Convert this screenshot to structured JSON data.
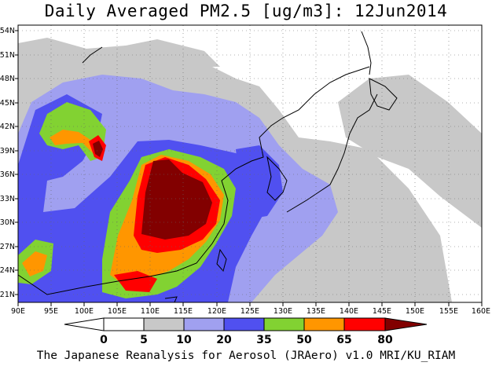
{
  "title": "Daily Averaged PM2.5 [ug/m3]: 12Jun2014",
  "footer": "The Japanese Reanalysis for Aerosol (JRAero) v1.0 MRI/KU_RIAM",
  "lon_ticks": [
    "90E",
    "95E",
    "100E",
    "105E",
    "110E",
    "115E",
    "120E",
    "125E",
    "130E",
    "135E",
    "140E",
    "145E",
    "150E",
    "155E",
    "160E"
  ],
  "lat_ticks": [
    "21N",
    "24N",
    "27N",
    "30N",
    "33N",
    "36N",
    "39N",
    "42N",
    "45N",
    "48N",
    "51N",
    "54N"
  ],
  "colorbar": {
    "labels": [
      "0",
      "5",
      "10",
      "20",
      "35",
      "50",
      "65",
      "80"
    ],
    "colors": [
      "#ffffff",
      "#c8c8c8",
      "#a0a0f0",
      "#5050f0",
      "#82d232",
      "#ff9600",
      "#ff0000",
      "#820000"
    ]
  },
  "palette": {
    "gray": "#c8c8c8",
    "lightblue": "#a0a0f0",
    "blue": "#5050f0",
    "green": "#82d232",
    "orange": "#ff9600",
    "red": "#ff0000",
    "darkred": "#820000",
    "coast": "#000000"
  }
}
